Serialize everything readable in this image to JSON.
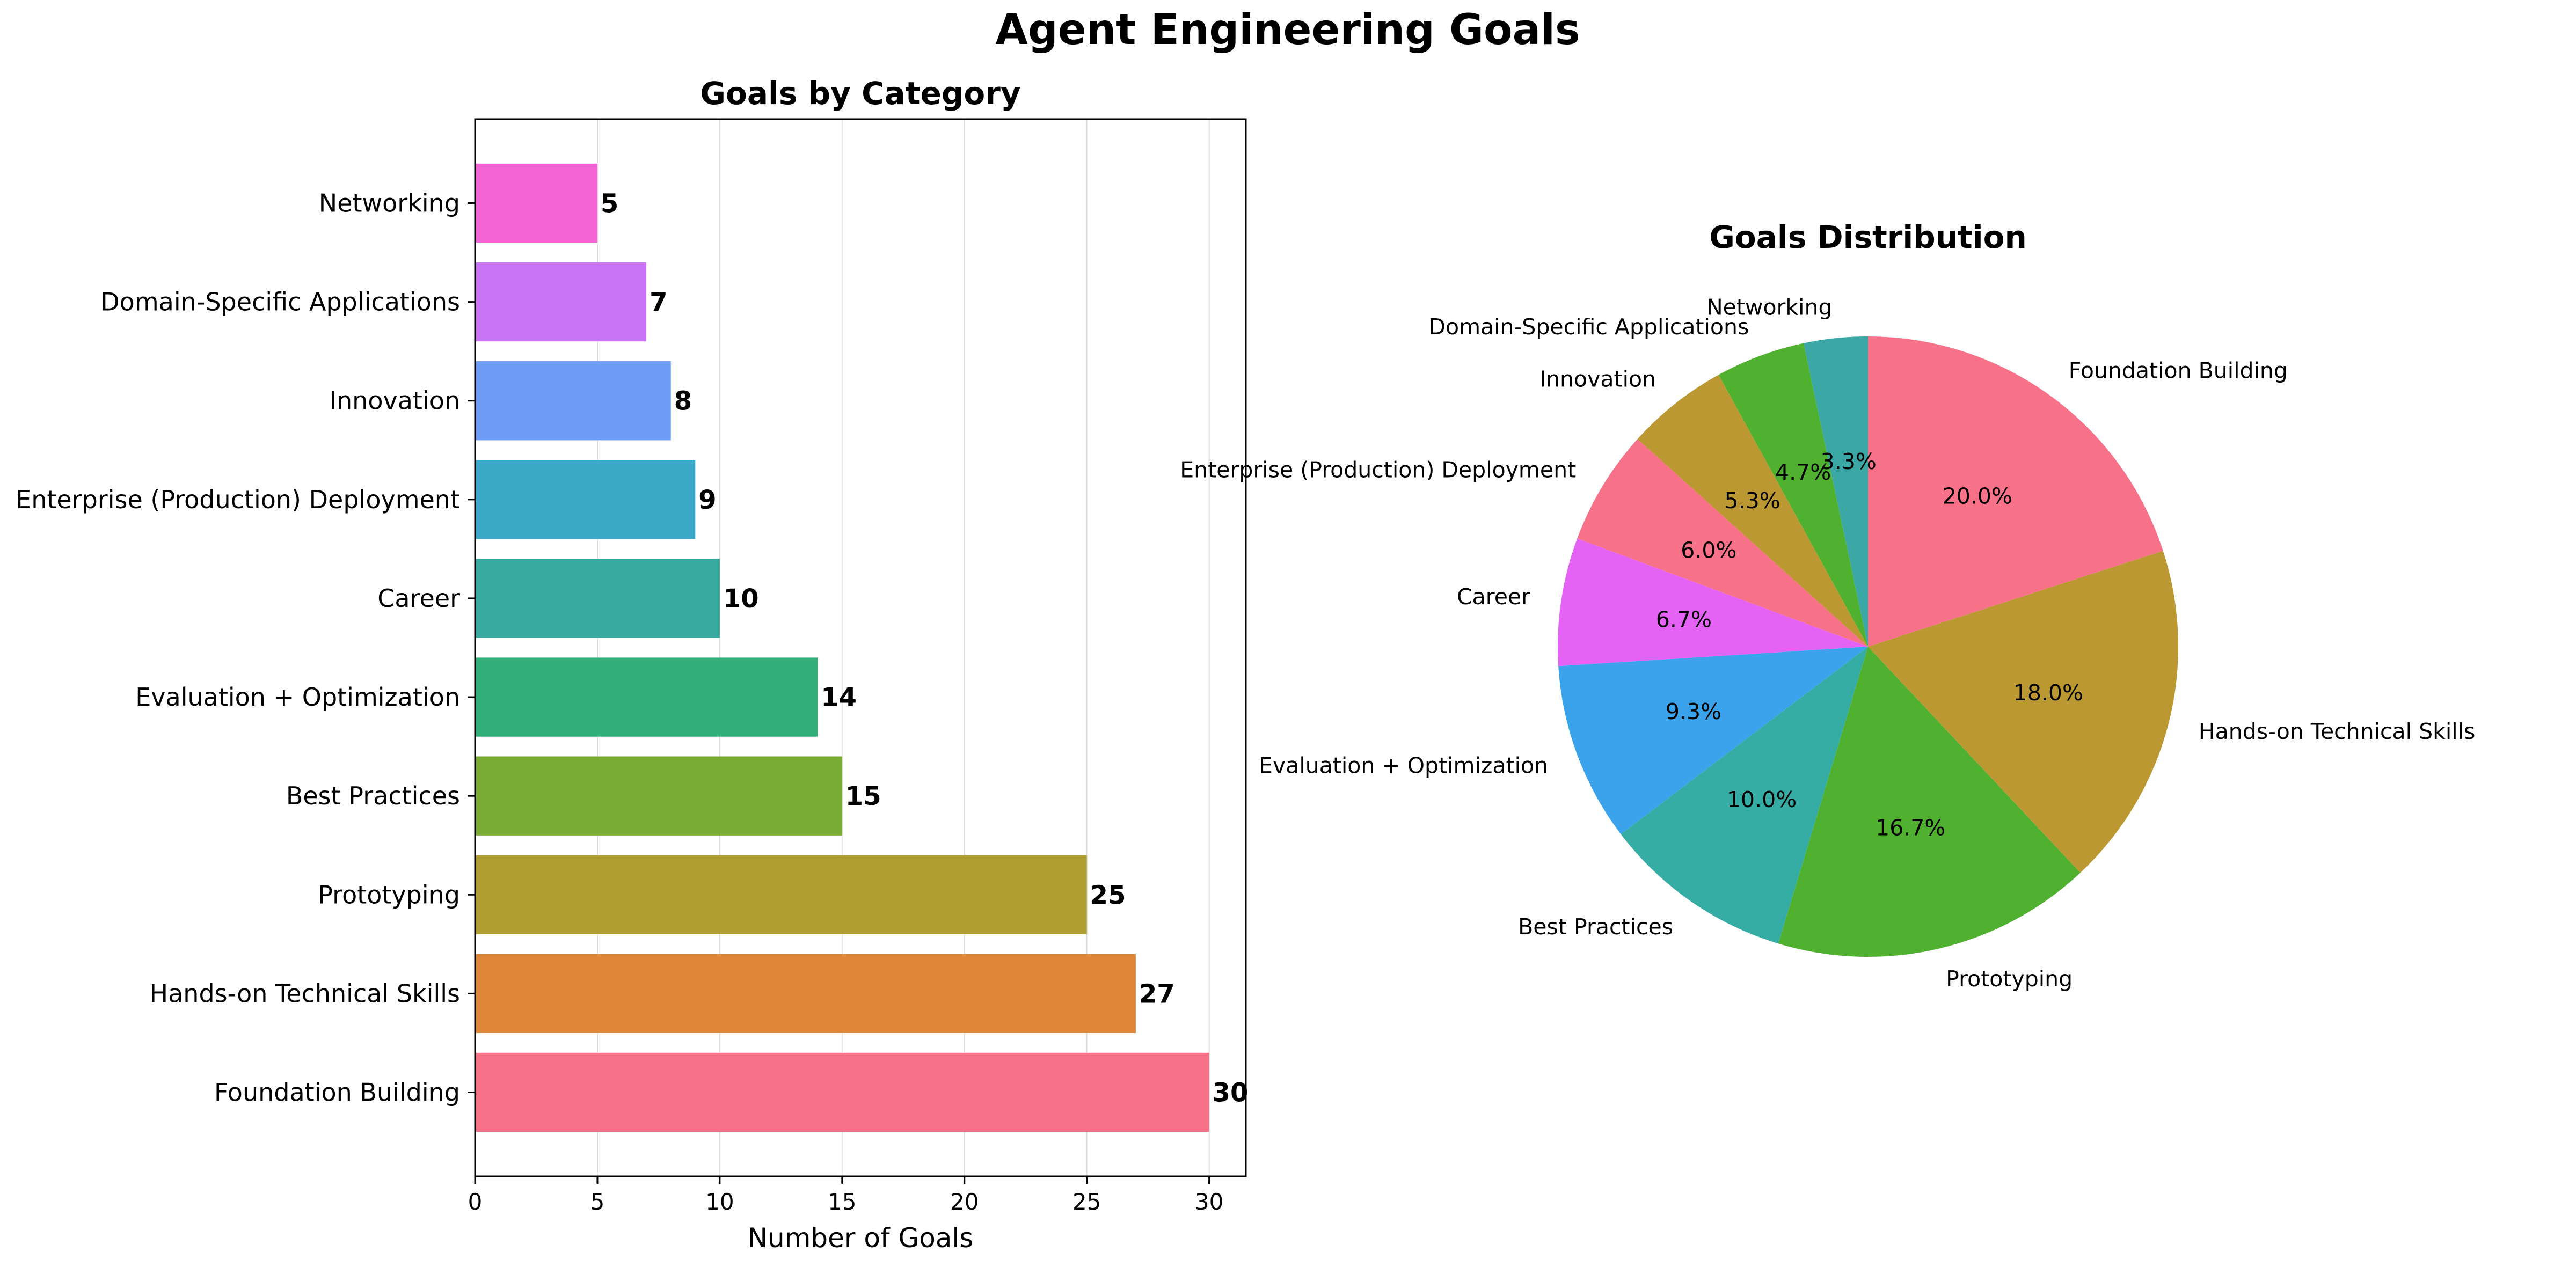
{
  "title": "Agent Engineering Goals",
  "chart_data": [
    {
      "type": "bar",
      "orientation": "horizontal",
      "title": "Goals by Category",
      "xlabel": "Number of Goals",
      "ylabel": "",
      "categories": [
        "Networking",
        "Domain-Specific Applications",
        "Innovation",
        "Enterprise (Production) Deployment",
        "Career",
        "Evaluation + Optimization",
        "Best Practices",
        "Prototyping",
        "Hands-on Technical Skills",
        "Foundation Building"
      ],
      "values": [
        5,
        7,
        8,
        9,
        10,
        14,
        15,
        25,
        27,
        30
      ],
      "colors": [
        "#f564d4",
        "#c774f5",
        "#6e9bf4",
        "#3ba8c7",
        "#38aaa0",
        "#33b07a",
        "#7aab34",
        "#ae9d31",
        "#e0883a",
        "#f77189"
      ],
      "xlim": [
        0,
        31.5
      ],
      "xticks": [
        "0",
        "5",
        "10",
        "15",
        "20",
        "25",
        "30"
      ],
      "grid": "x"
    },
    {
      "type": "pie",
      "title": "Goals Distribution",
      "start_angle_deg": 90,
      "direction": "counterclockwise",
      "labels": [
        "Networking",
        "Domain-Specific Applications",
        "Innovation",
        "Enterprise (Production) Deployment",
        "Career",
        "Evaluation + Optimization",
        "Best Practices",
        "Prototyping",
        "Hands-on Technical Skills",
        "Foundation Building"
      ],
      "values": [
        5,
        7,
        8,
        9,
        10,
        14,
        15,
        25,
        27,
        30
      ],
      "percent_labels": [
        "3.3%",
        "4.7%",
        "5.3%",
        "6.0%",
        "6.7%",
        "9.3%",
        "10.0%",
        "16.7%",
        "18.0%",
        "20.0%"
      ],
      "colors": [
        "#3ba8a5",
        "#50b131",
        "#bb9832",
        "#f77189",
        "#e463f5",
        "#3ba3ec",
        "#36ada4",
        "#50b131",
        "#bb9832",
        "#f77189"
      ]
    }
  ]
}
